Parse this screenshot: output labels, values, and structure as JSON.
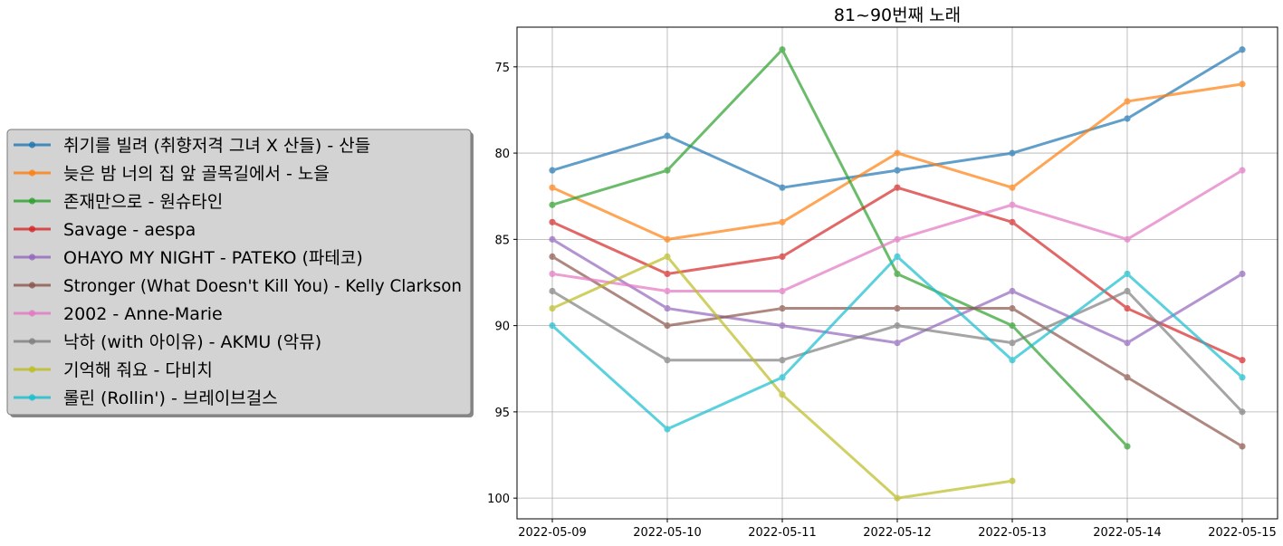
{
  "chart_data": {
    "type": "line",
    "title": "81~90번째 노래",
    "xlabel": "",
    "ylabel": "",
    "y_inverted": true,
    "ylim": [
      101.2,
      72.7
    ],
    "yticks": [
      75,
      80,
      85,
      90,
      95,
      100
    ],
    "grid": true,
    "legend_placement": "left, outside plot",
    "x": [
      "2022-05-09",
      "2022-05-10",
      "2022-05-11",
      "2022-05-12",
      "2022-05-13",
      "2022-05-14",
      "2022-05-15"
    ],
    "series": [
      {
        "name": "취기를 빌려 (취향저격 그녀 X 산들) - 산들",
        "color": "#1f77b4",
        "values": [
          81,
          79,
          82,
          81,
          80,
          78,
          74
        ]
      },
      {
        "name": "늦은 밤 너의 집 앞 골목길에서 - 노을",
        "color": "#ff7f0e",
        "values": [
          82,
          85,
          84,
          80,
          82,
          77,
          76
        ]
      },
      {
        "name": "존재만으로 - 원슈타인",
        "color": "#2ca02c",
        "values": [
          83,
          81,
          74,
          87,
          90,
          97,
          null
        ]
      },
      {
        "name": "Savage - aespa",
        "color": "#d62728",
        "values": [
          84,
          87,
          86,
          82,
          84,
          89,
          92
        ]
      },
      {
        "name": "OHAYO MY NIGHT - PATEKO (파테코)",
        "color": "#9467bd",
        "values": [
          85,
          89,
          90,
          91,
          88,
          91,
          87
        ]
      },
      {
        "name": "Stronger (What Doesn't Kill You) - Kelly Clarkson",
        "color": "#8c564b",
        "values": [
          86,
          90,
          89,
          89,
          89,
          93,
          97
        ]
      },
      {
        "name": "2002 - Anne-Marie",
        "color": "#e377c2",
        "values": [
          87,
          88,
          88,
          85,
          83,
          85,
          81
        ]
      },
      {
        "name": "낙하 (with 아이유) - AKMU (악뮤)",
        "color": "#7f7f7f",
        "values": [
          88,
          92,
          92,
          90,
          91,
          88,
          95
        ]
      },
      {
        "name": "기억해 줘요 - 다비치",
        "color": "#bcbd22",
        "values": [
          89,
          86,
          94,
          100,
          99,
          null,
          null
        ]
      },
      {
        "name": "롤린 (Rollin') - 브레이브걸스",
        "color": "#17becf",
        "values": [
          90,
          96,
          93,
          86,
          92,
          87,
          93
        ]
      }
    ]
  }
}
